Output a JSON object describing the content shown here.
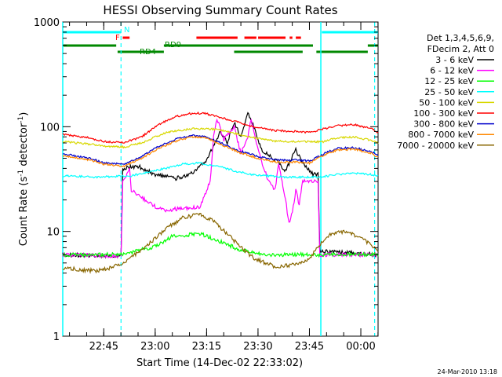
{
  "chart_data": {
    "type": "line",
    "title": "HESSI Observing Summary Count Rates",
    "xlabel": "Start Time (14-Dec-02 22:33:02)",
    "ylabel_main": "Count Rate (s",
    "ylabel_sup1": "-1",
    "ylabel_mid": " detector",
    "ylabel_sup2": "-1",
    "ylabel_end": ")",
    "yscale": "log",
    "ylim": [
      1,
      1000
    ],
    "xlim_minutes": [
      0,
      92
    ],
    "x_ticks": [
      {
        "label": "22:45",
        "t": 11.97
      },
      {
        "label": "23:00",
        "t": 26.97
      },
      {
        "label": "23:15",
        "t": 41.97
      },
      {
        "label": "23:30",
        "t": 56.97
      },
      {
        "label": "23:45",
        "t": 71.97
      },
      {
        "label": "00:00",
        "t": 86.97
      }
    ],
    "y_ticks": [
      {
        "label": "1",
        "v": 1
      },
      {
        "label": "10",
        "v": 10
      },
      {
        "label": "100",
        "v": 100
      },
      {
        "label": "1000",
        "v": 1000
      }
    ],
    "legend": {
      "placement": "right",
      "header": [
        "Det 1,3,4,5,6,9,",
        "FDecim 2, Att 0"
      ]
    },
    "series": [
      {
        "name": "3 - 6 keV",
        "color": "#000000",
        "points": [
          [
            0,
            6
          ],
          [
            17,
            5.8
          ],
          [
            17.5,
            40
          ],
          [
            22,
            42
          ],
          [
            27,
            35
          ],
          [
            33,
            32
          ],
          [
            38,
            36
          ],
          [
            42,
            48
          ],
          [
            46,
            90
          ],
          [
            48,
            70
          ],
          [
            50,
            110
          ],
          [
            52,
            80
          ],
          [
            54,
            135
          ],
          [
            56,
            95
          ],
          [
            58,
            60
          ],
          [
            62,
            48
          ],
          [
            65,
            38
          ],
          [
            68,
            60
          ],
          [
            70,
            45
          ],
          [
            73,
            35
          ],
          [
            74.5,
            35
          ],
          [
            75,
            6.5
          ],
          [
            92,
            6
          ]
        ]
      },
      {
        "name": "6 - 12 keV",
        "color": "#ff00ff",
        "points": [
          [
            0,
            6
          ],
          [
            17,
            5.8
          ],
          [
            17.5,
            30
          ],
          [
            19.5,
            40
          ],
          [
            20,
            25
          ],
          [
            24,
            20
          ],
          [
            26,
            18
          ],
          [
            29,
            16
          ],
          [
            35,
            16.5
          ],
          [
            40,
            17
          ],
          [
            43,
            30
          ],
          [
            44,
            80
          ],
          [
            45,
            120
          ],
          [
            47,
            75
          ],
          [
            50,
            100
          ],
          [
            52,
            55
          ],
          [
            54,
            80
          ],
          [
            55,
            120
          ],
          [
            57,
            60
          ],
          [
            60,
            30
          ],
          [
            62,
            25
          ],
          [
            63,
            45
          ],
          [
            64,
            30
          ],
          [
            65,
            20
          ],
          [
            66,
            12
          ],
          [
            67,
            15
          ],
          [
            68,
            25
          ],
          [
            69,
            18
          ],
          [
            70,
            30
          ],
          [
            72,
            30
          ],
          [
            74.5,
            30
          ],
          [
            75,
            6
          ],
          [
            92,
            6
          ]
        ]
      },
      {
        "name": "12 - 25 keV",
        "color": "#00ff00",
        "points": [
          [
            0,
            6
          ],
          [
            17,
            6
          ],
          [
            27,
            7.2
          ],
          [
            32,
            9
          ],
          [
            35,
            9.2
          ],
          [
            40,
            9.5
          ],
          [
            44,
            8.5
          ],
          [
            48,
            7.5
          ],
          [
            52,
            6.6
          ],
          [
            60,
            6
          ],
          [
            70,
            6
          ],
          [
            80,
            6
          ],
          [
            92,
            6
          ]
        ]
      },
      {
        "name": "25 - 50 keV",
        "color": "#00ffff",
        "points": [
          [
            0,
            34
          ],
          [
            10,
            33
          ],
          [
            20,
            34
          ],
          [
            25,
            37
          ],
          [
            30,
            40
          ],
          [
            35,
            44
          ],
          [
            40,
            45
          ],
          [
            45,
            42
          ],
          [
            50,
            38
          ],
          [
            55,
            35
          ],
          [
            60,
            34
          ],
          [
            65,
            33
          ],
          [
            70,
            33
          ],
          [
            75,
            33
          ],
          [
            80,
            35
          ],
          [
            85,
            36
          ],
          [
            90,
            35
          ],
          [
            92,
            34
          ]
        ]
      },
      {
        "name": "50 - 100 keV",
        "color": "#d8d800",
        "points": [
          [
            0,
            72
          ],
          [
            8,
            68
          ],
          [
            12,
            65
          ],
          [
            18,
            64
          ],
          [
            23,
            70
          ],
          [
            30,
            88
          ],
          [
            38,
            96
          ],
          [
            44,
            95
          ],
          [
            50,
            87
          ],
          [
            56,
            78
          ],
          [
            62,
            73
          ],
          [
            68,
            72
          ],
          [
            72,
            72
          ],
          [
            76,
            72
          ],
          [
            80,
            78
          ],
          [
            85,
            80
          ],
          [
            90,
            74
          ],
          [
            92,
            70
          ]
        ]
      },
      {
        "name": "100 - 300 keV",
        "color": "#ff0000",
        "points": [
          [
            0,
            85
          ],
          [
            8,
            78
          ],
          [
            12,
            72
          ],
          [
            18,
            71
          ],
          [
            23,
            80
          ],
          [
            28,
            105
          ],
          [
            33,
            125
          ],
          [
            38,
            135
          ],
          [
            42,
            133
          ],
          [
            47,
            120
          ],
          [
            52,
            108
          ],
          [
            57,
            98
          ],
          [
            62,
            92
          ],
          [
            68,
            90
          ],
          [
            72,
            88
          ],
          [
            76,
            95
          ],
          [
            80,
            102
          ],
          [
            85,
            105
          ],
          [
            90,
            96
          ],
          [
            92,
            88
          ]
        ]
      },
      {
        "name": "300 - 800 keV",
        "color": "#0000cc",
        "points": [
          [
            0,
            55
          ],
          [
            8,
            50
          ],
          [
            12,
            45
          ],
          [
            18,
            44
          ],
          [
            23,
            52
          ],
          [
            28,
            65
          ],
          [
            34,
            78
          ],
          [
            38,
            82
          ],
          [
            42,
            80
          ],
          [
            47,
            68
          ],
          [
            52,
            58
          ],
          [
            57,
            52
          ],
          [
            62,
            48
          ],
          [
            68,
            48
          ],
          [
            72,
            47
          ],
          [
            76,
            55
          ],
          [
            80,
            62
          ],
          [
            85,
            63
          ],
          [
            90,
            58
          ],
          [
            92,
            53
          ]
        ]
      },
      {
        "name": "800 - 7000 keV",
        "color": "#ff8800",
        "points": [
          [
            0,
            53
          ],
          [
            8,
            48
          ],
          [
            12,
            44
          ],
          [
            18,
            42
          ],
          [
            23,
            50
          ],
          [
            28,
            62
          ],
          [
            34,
            75
          ],
          [
            38,
            80
          ],
          [
            42,
            78
          ],
          [
            47,
            66
          ],
          [
            52,
            56
          ],
          [
            57,
            50
          ],
          [
            62,
            46
          ],
          [
            68,
            46
          ],
          [
            72,
            45
          ],
          [
            76,
            53
          ],
          [
            80,
            60
          ],
          [
            85,
            61
          ],
          [
            90,
            56
          ],
          [
            92,
            51
          ]
        ]
      },
      {
        "name": "7000 - 20000 keV",
        "color": "#886600",
        "points": [
          [
            0,
            4.5
          ],
          [
            5,
            4.3
          ],
          [
            10,
            4.2
          ],
          [
            15,
            4.6
          ],
          [
            20,
            5.6
          ],
          [
            25,
            7.5
          ],
          [
            30,
            10.5
          ],
          [
            35,
            13.5
          ],
          [
            40,
            14.5
          ],
          [
            44,
            12.5
          ],
          [
            48,
            9.5
          ],
          [
            52,
            7
          ],
          [
            56,
            5.5
          ],
          [
            62,
            4.6
          ],
          [
            68,
            4.8
          ],
          [
            72,
            5.5
          ],
          [
            75,
            7.5
          ],
          [
            78,
            9.5
          ],
          [
            82,
            10
          ],
          [
            86,
            9
          ],
          [
            90,
            7.5
          ],
          [
            92,
            6.5
          ]
        ]
      }
    ],
    "flag_bars": [
      {
        "label": "N",
        "color": "#00ffff",
        "segments": [
          [
            0,
            17
          ],
          [
            75.6,
            92
          ]
        ]
      },
      {
        "label": "F",
        "color": "#ff0000",
        "segments": [
          [
            17.5,
            19.5
          ],
          [
            39,
            51
          ],
          [
            53,
            56.5
          ],
          [
            57,
            65
          ],
          [
            66.2,
            67
          ],
          [
            68,
            69.5
          ]
        ]
      },
      {
        "label": "RD0",
        "color": "#008800",
        "segments": [
          [
            0,
            15.6
          ],
          [
            29.5,
            73
          ],
          [
            89,
            92
          ]
        ]
      },
      {
        "label": "RD4",
        "color": "#008800",
        "segments": [
          [
            16,
            29.5
          ],
          [
            50,
            70
          ],
          [
            74,
            89
          ]
        ]
      }
    ],
    "solid_vlines_minutes": [
      0,
      75.3
    ],
    "dashed_vlines_minutes": [
      17,
      91
    ]
  },
  "footer": {
    "timestamp": "24-Mar-2010 13:18"
  }
}
